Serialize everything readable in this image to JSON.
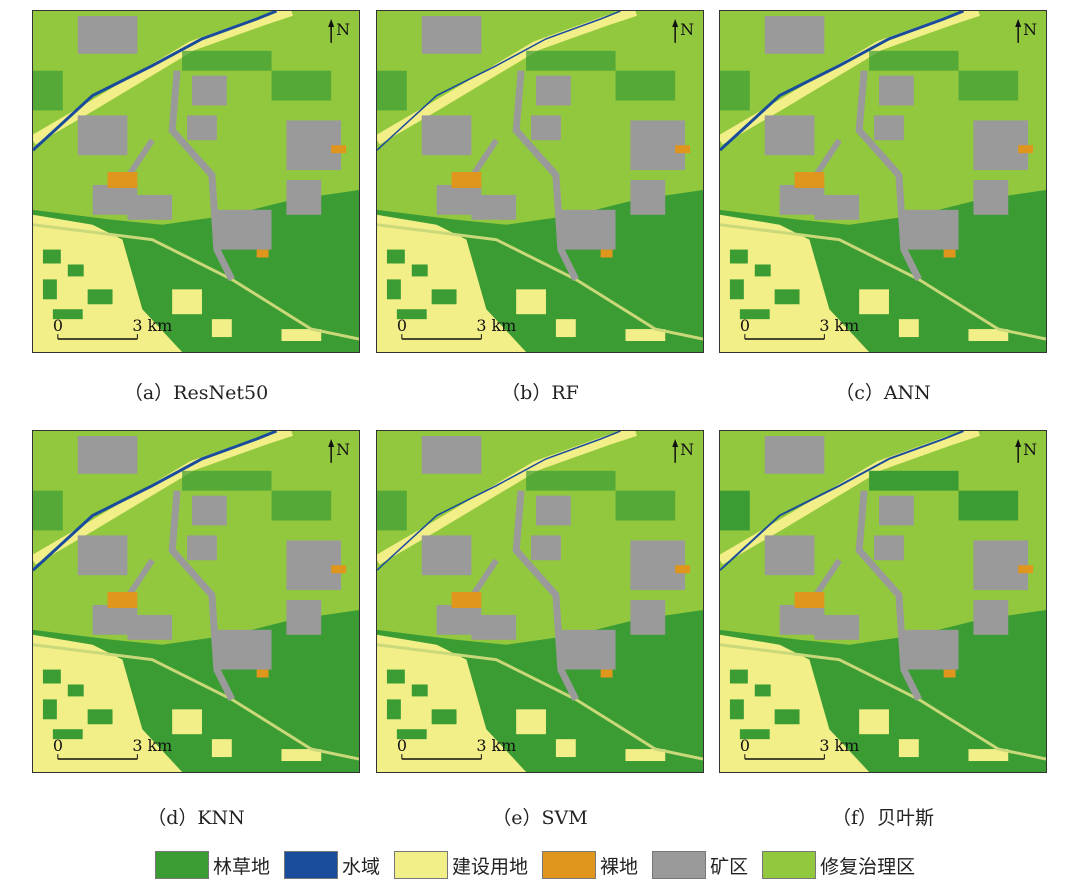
{
  "panels": [
    {
      "caption": "（a）ResNet50",
      "variant": 0
    },
    {
      "caption": "（b）RF",
      "variant": 1
    },
    {
      "caption": "（c）ANN",
      "variant": 2
    },
    {
      "caption": "（d）KNN",
      "variant": 3
    },
    {
      "caption": "（e）SVM",
      "variant": 4
    },
    {
      "caption": "（f）贝叶斯",
      "variant": 5
    }
  ],
  "map": {
    "north_label": "N",
    "scale_start": "0",
    "scale_end": "3 km"
  },
  "legend": [
    {
      "label": "林草地",
      "color": "#3c9c34"
    },
    {
      "label": "水域",
      "color": "#1a4c9c"
    },
    {
      "label": "建设用地",
      "color": "#f2ee88"
    },
    {
      "label": "裸地",
      "color": "#e0951c"
    },
    {
      "label": "矿区",
      "color": "#9a9a9a"
    },
    {
      "label": "修复治理区",
      "color": "#92c83e"
    }
  ]
}
